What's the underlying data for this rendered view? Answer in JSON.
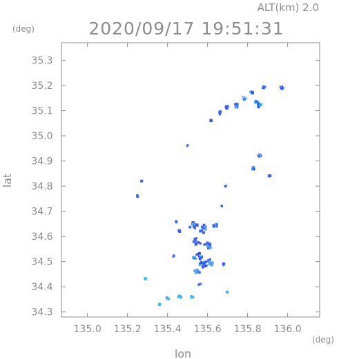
{
  "header": {
    "altitude_label": "ALT(km)",
    "altitude_value": "2.0",
    "timestamp": "2020/09/17 19:51:31"
  },
  "chart_data": {
    "type": "scatter",
    "xlabel": "lon",
    "ylabel": "lat",
    "x_unit": "(deg)",
    "y_unit": "(deg)",
    "xlim": [
      134.87,
      136.16
    ],
    "ylim": [
      34.28,
      35.37
    ],
    "x_ticks": [
      "135.0",
      "135.2",
      "135.4",
      "135.6",
      "135.8",
      "136.0"
    ],
    "y_ticks": [
      "34.3",
      "34.4",
      "34.5",
      "34.6",
      "34.7",
      "34.8",
      "34.9",
      "35.0",
      "35.1",
      "35.2",
      "35.3"
    ],
    "grid": false,
    "colors": {
      "primary": "#3a5cf0",
      "light": "#4db8f0",
      "axis": "#8c8c8c"
    },
    "clusters": [
      {
        "lon": 135.84,
        "lat": 35.13,
        "size": 0.014,
        "intensity": "high"
      },
      {
        "lon": 135.86,
        "lat": 35.12,
        "size": 0.012,
        "intensity": "high"
      },
      {
        "lon": 135.82,
        "lat": 35.17,
        "size": 0.01,
        "intensity": "high"
      },
      {
        "lon": 135.88,
        "lat": 35.19,
        "size": 0.008,
        "intensity": "medium"
      },
      {
        "lon": 135.78,
        "lat": 35.15,
        "size": 0.01,
        "intensity": "medium"
      },
      {
        "lon": 135.74,
        "lat": 35.12,
        "size": 0.012,
        "intensity": "medium"
      },
      {
        "lon": 135.7,
        "lat": 35.11,
        "size": 0.01,
        "intensity": "medium"
      },
      {
        "lon": 135.66,
        "lat": 35.09,
        "size": 0.008,
        "intensity": "low"
      },
      {
        "lon": 135.97,
        "lat": 35.19,
        "size": 0.009,
        "intensity": "high"
      },
      {
        "lon": 135.62,
        "lat": 35.06,
        "size": 0.005,
        "intensity": "low"
      },
      {
        "lon": 135.5,
        "lat": 34.96,
        "size": 0.004,
        "intensity": "low"
      },
      {
        "lon": 135.86,
        "lat": 34.92,
        "size": 0.006,
        "intensity": "medium"
      },
      {
        "lon": 135.83,
        "lat": 34.87,
        "size": 0.006,
        "intensity": "medium"
      },
      {
        "lon": 135.91,
        "lat": 34.84,
        "size": 0.004,
        "intensity": "low"
      },
      {
        "lon": 135.69,
        "lat": 34.8,
        "size": 0.004,
        "intensity": "low"
      },
      {
        "lon": 135.67,
        "lat": 34.72,
        "size": 0.004,
        "intensity": "low"
      },
      {
        "lon": 135.27,
        "lat": 34.82,
        "size": 0.003,
        "intensity": "low"
      },
      {
        "lon": 135.25,
        "lat": 34.76,
        "size": 0.004,
        "intensity": "low"
      },
      {
        "lon": 135.53,
        "lat": 34.64,
        "size": 0.02,
        "intensity": "medium"
      },
      {
        "lon": 135.58,
        "lat": 34.63,
        "size": 0.02,
        "intensity": "medium"
      },
      {
        "lon": 135.64,
        "lat": 34.64,
        "size": 0.014,
        "intensity": "medium"
      },
      {
        "lon": 135.55,
        "lat": 34.58,
        "size": 0.02,
        "intensity": "medium"
      },
      {
        "lon": 135.6,
        "lat": 34.56,
        "size": 0.02,
        "intensity": "medium"
      },
      {
        "lon": 135.55,
        "lat": 34.52,
        "size": 0.022,
        "intensity": "high"
      },
      {
        "lon": 135.58,
        "lat": 34.49,
        "size": 0.02,
        "intensity": "high"
      },
      {
        "lon": 135.62,
        "lat": 34.5,
        "size": 0.016,
        "intensity": "medium"
      },
      {
        "lon": 135.55,
        "lat": 34.46,
        "size": 0.014,
        "intensity": "medium"
      },
      {
        "lon": 135.68,
        "lat": 34.49,
        "size": 0.008,
        "intensity": "low"
      },
      {
        "lon": 135.46,
        "lat": 34.62,
        "size": 0.006,
        "intensity": "low"
      },
      {
        "lon": 135.44,
        "lat": 34.66,
        "size": 0.006,
        "intensity": "low"
      },
      {
        "lon": 135.43,
        "lat": 34.52,
        "size": 0.005,
        "intensity": "low"
      },
      {
        "lon": 135.56,
        "lat": 34.41,
        "size": 0.006,
        "intensity": "medium"
      },
      {
        "lon": 135.29,
        "lat": 34.43,
        "size": 0.004,
        "intensity": "light"
      },
      {
        "lon": 135.4,
        "lat": 34.35,
        "size": 0.008,
        "intensity": "light"
      },
      {
        "lon": 135.46,
        "lat": 34.36,
        "size": 0.008,
        "intensity": "light"
      },
      {
        "lon": 135.52,
        "lat": 34.36,
        "size": 0.006,
        "intensity": "light"
      },
      {
        "lon": 135.36,
        "lat": 34.33,
        "size": 0.004,
        "intensity": "light"
      },
      {
        "lon": 135.7,
        "lat": 34.38,
        "size": 0.003,
        "intensity": "light"
      }
    ]
  }
}
